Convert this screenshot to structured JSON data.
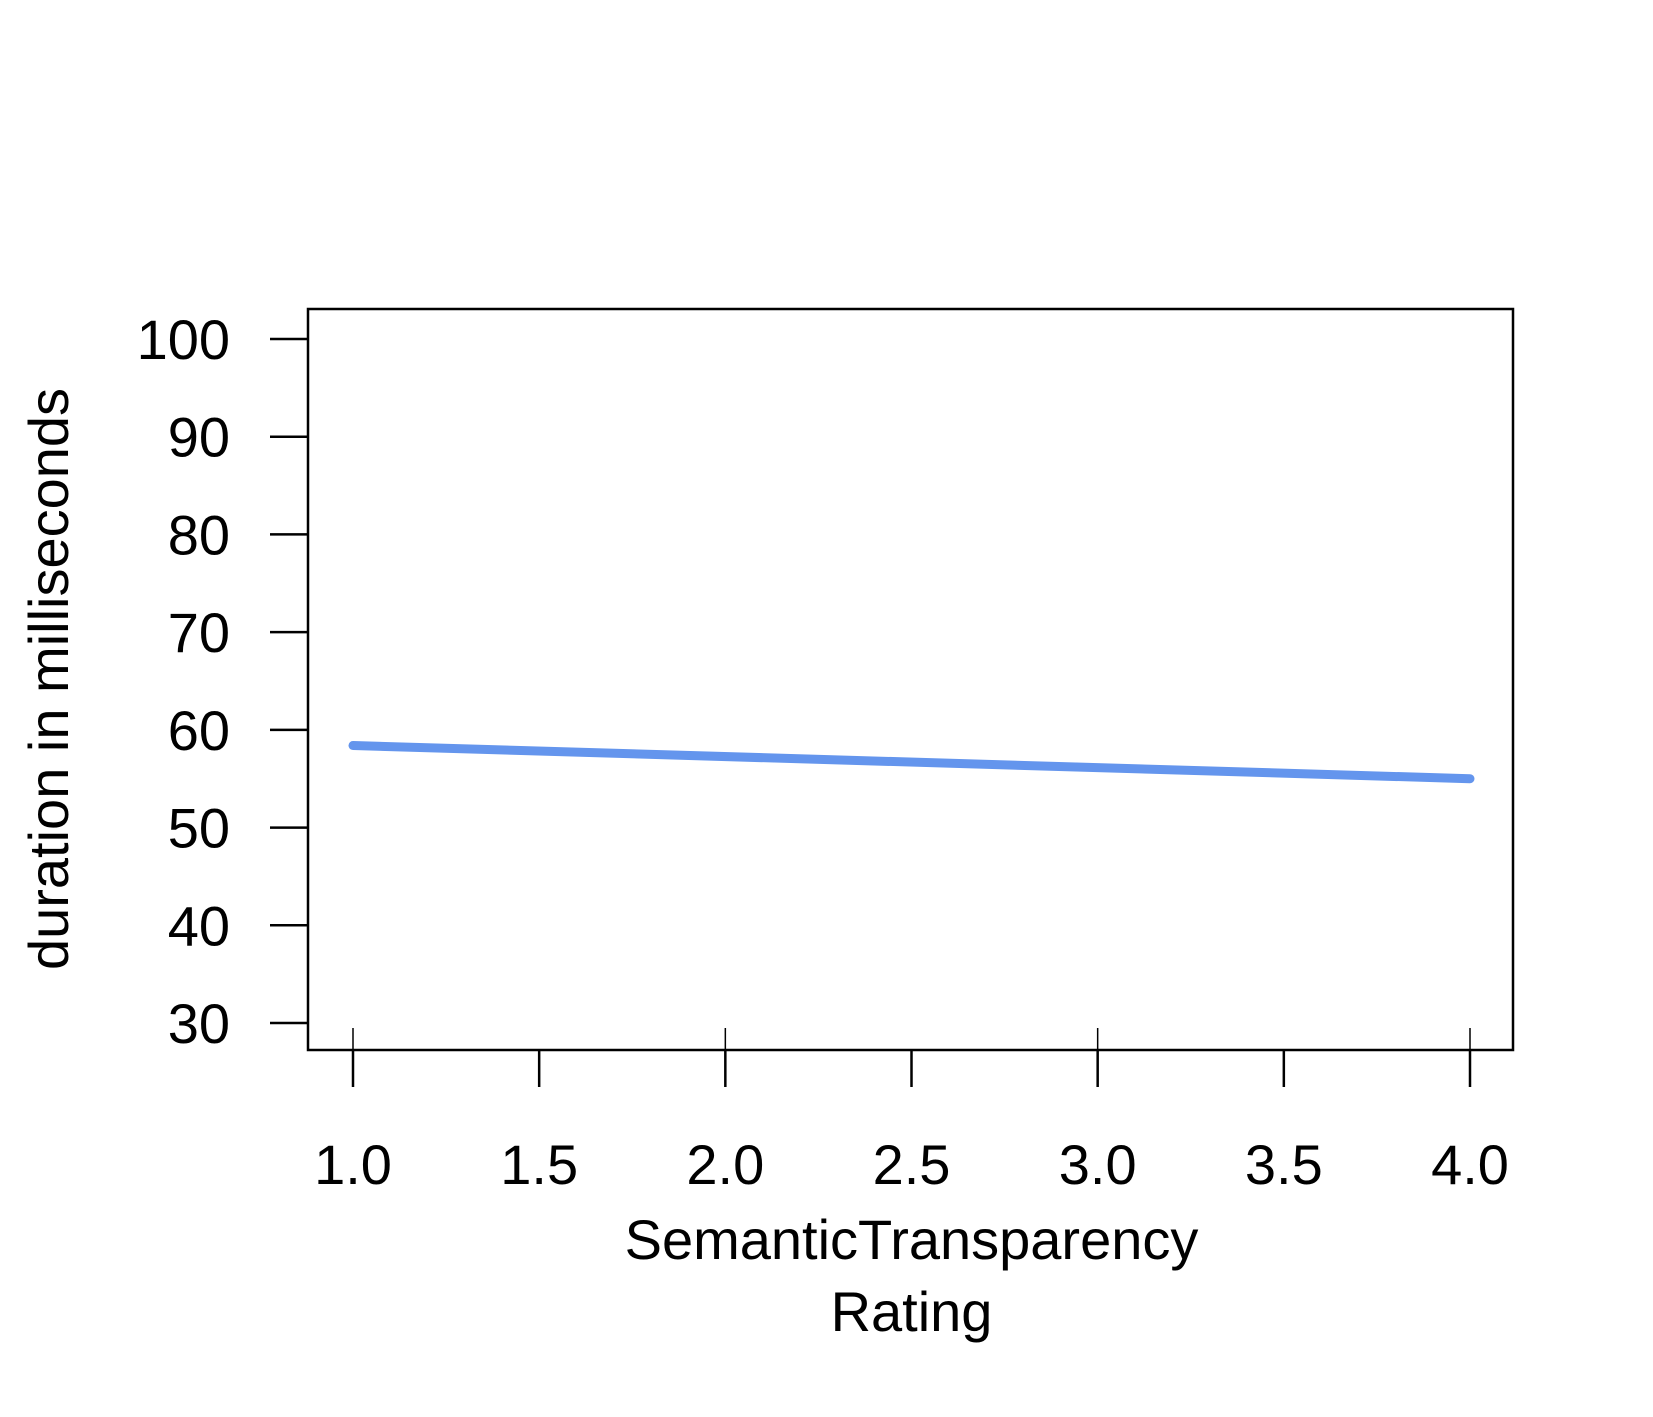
{
  "chart_data": {
    "type": "line",
    "title": "",
    "xlabel": "SemanticTransparency\nRating",
    "ylabel": "duration in milliseconds",
    "xlim": [
      1.0,
      4.0
    ],
    "ylim": [
      30,
      100
    ],
    "xticks": [
      "1.0",
      "1.5",
      "2.0",
      "2.5",
      "3.0",
      "3.5",
      "4.0"
    ],
    "yticks": [
      "30",
      "40",
      "50",
      "60",
      "70",
      "80",
      "90",
      "100"
    ],
    "grid": false,
    "legend": "none",
    "series": [
      {
        "x": [
          1.0,
          4.0
        ],
        "y": [
          58.4,
          55.0
        ],
        "color": "#6495ED"
      }
    ]
  }
}
